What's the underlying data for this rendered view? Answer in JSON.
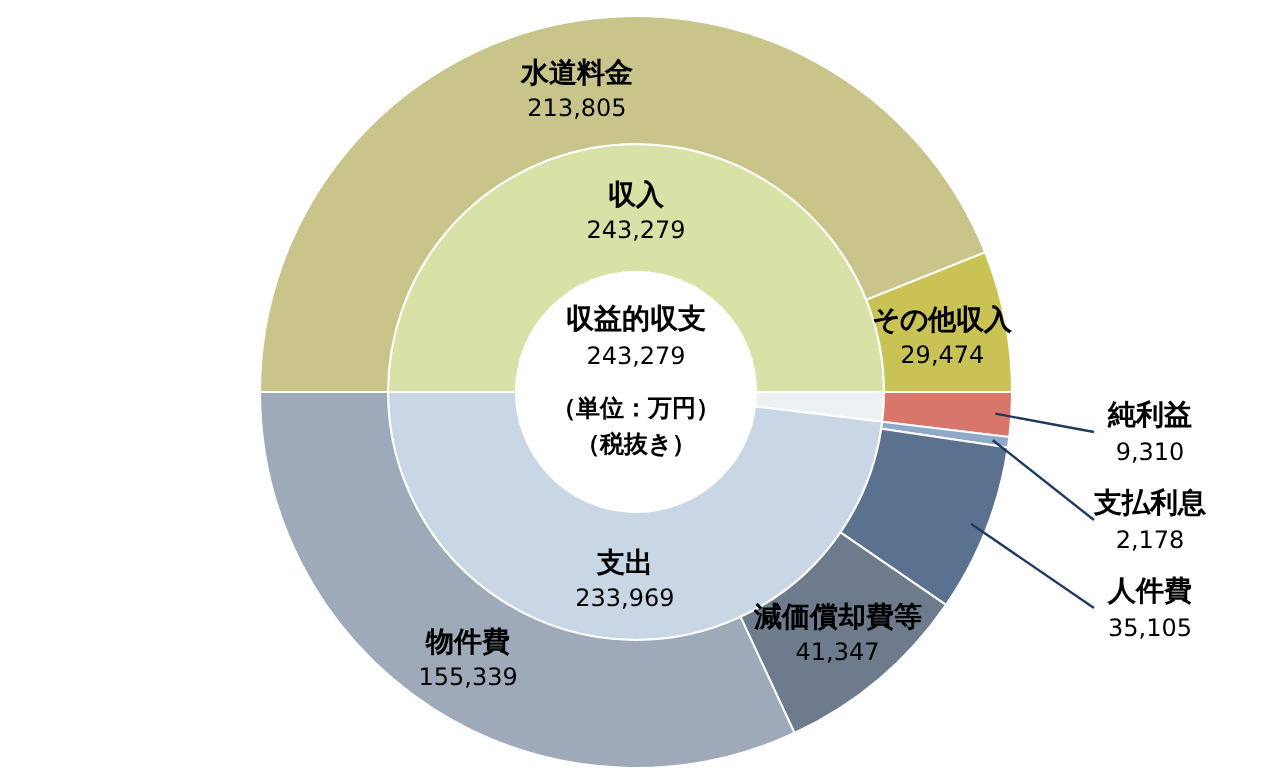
{
  "chart_data": [
    {
      "type": "donut",
      "categories": [
        "収入",
        null,
        "支出"
      ],
      "values": [
        243279,
        9310,
        233969
      ],
      "colors": [
        "#d9e2a6",
        "#eef1f4",
        "#c9d6e6"
      ],
      "value_labels": [
        "243,279",
        null,
        "233,969"
      ],
      "annotations": [
        "収益的収支",
        "243,279",
        "（単位：万円）",
        "（税抜き）"
      ]
    },
    {
      "type": "donut",
      "categories": [
        "水道料金",
        "その他収入",
        "純利益",
        "支払利息",
        "人件費",
        "減価償却費等",
        "物件費"
      ],
      "values": [
        213805,
        29474,
        9310,
        2178,
        35105,
        41347,
        155339
      ],
      "colors": [
        "#c8c48a",
        "#c9c254",
        "#d8766c",
        "#8fa9c9",
        "#5b7190",
        "#6d7b8d",
        "#9ea9b9"
      ],
      "value_labels": [
        "213,805",
        "29,474",
        "9,310",
        "2,178",
        "35,105",
        "41,347",
        "155,339"
      ]
    }
  ]
}
